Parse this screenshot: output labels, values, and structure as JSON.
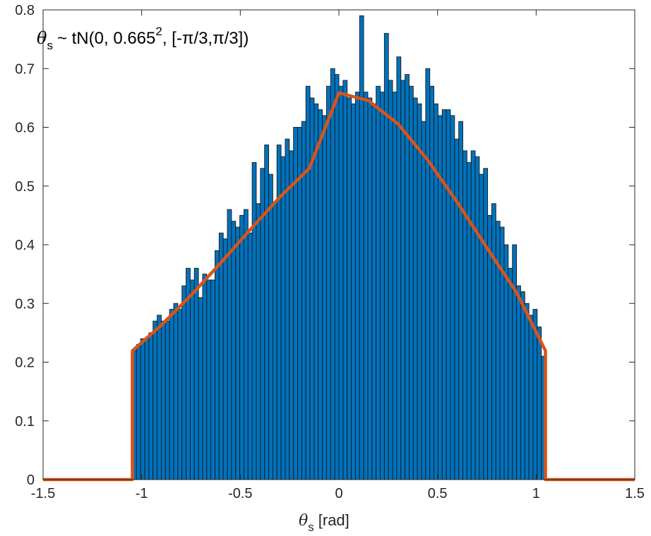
{
  "chart_data": {
    "type": "bar",
    "title": "",
    "annotation": {
      "symbol": "θ",
      "subscript": "s",
      "text": "~ tN(0, 0.665",
      "superscript": "2",
      "suffix": ", [-π/3,π/3])"
    },
    "xlabel": {
      "symbol": "θ",
      "subscript": "s",
      "text": "[rad]"
    },
    "ylabel": "",
    "xlim": [
      -1.5,
      1.5
    ],
    "ylim": [
      0,
      0.8
    ],
    "xticks": [
      -1.5,
      -1,
      -0.5,
      0,
      0.5,
      1,
      1.5
    ],
    "xtick_labels": [
      "-1.5",
      "-1",
      "-0.5",
      "0",
      "0.5",
      "1",
      "1.5"
    ],
    "yticks": [
      0,
      0.1,
      0.2,
      0.3,
      0.4,
      0.5,
      0.6,
      0.7,
      0.8
    ],
    "ytick_labels": [
      "0",
      "0.1",
      "0.2",
      "0.3",
      "0.4",
      "0.5",
      "0.6",
      "0.7",
      "0.8"
    ],
    "bin_range": [
      -1.0472,
      1.0472
    ],
    "bin_count": 100,
    "bar_values": [
      0.22,
      0.23,
      0.24,
      0.24,
      0.25,
      0.27,
      0.28,
      0.27,
      0.27,
      0.29,
      0.3,
      0.29,
      0.33,
      0.36,
      0.34,
      0.36,
      0.31,
      0.35,
      0.34,
      0.34,
      0.39,
      0.42,
      0.41,
      0.46,
      0.44,
      0.43,
      0.45,
      0.46,
      0.42,
      0.54,
      0.47,
      0.53,
      0.57,
      0.52,
      0.47,
      0.57,
      0.55,
      0.58,
      0.56,
      0.6,
      0.6,
      0.61,
      0.67,
      0.65,
      0.64,
      0.63,
      0.62,
      0.67,
      0.7,
      0.69,
      0.67,
      0.68,
      0.65,
      0.64,
      0.66,
      0.79,
      0.66,
      0.65,
      0.64,
      0.67,
      0.66,
      0.76,
      0.68,
      0.66,
      0.72,
      0.68,
      0.69,
      0.67,
      0.65,
      0.64,
      0.61,
      0.7,
      0.67,
      0.64,
      0.62,
      0.63,
      0.63,
      0.62,
      0.58,
      0.61,
      0.56,
      0.54,
      0.56,
      0.55,
      0.52,
      0.53,
      0.45,
      0.47,
      0.44,
      0.43,
      0.4,
      0.36,
      0.4,
      0.33,
      0.32,
      0.3,
      0.28,
      0.29,
      0.26,
      0.21
    ],
    "series": [
      {
        "type": "line",
        "x": [
          -1.5,
          -1.0472,
          -1.0472,
          -0.9,
          -0.75,
          -0.6,
          -0.45,
          -0.3,
          -0.15,
          0,
          0.15,
          0.3,
          0.45,
          0.6,
          0.75,
          0.9,
          1.0472,
          1.0472,
          1.5
        ],
        "y": [
          0,
          0,
          0.2194,
          0.2632,
          0.3138,
          0.3687,
          0.4256,
          0.4809,
          0.5302,
          0.6587,
          0.6454,
          0.6056,
          0.5443,
          0.4723,
          0.3949,
          0.3191,
          0.2194,
          0,
          0
        ]
      }
    ],
    "grid": false,
    "legend": "none",
    "colors": {
      "bar_fill": "#0072BD",
      "bar_edge": "#1a1a1a",
      "line": "#D95319",
      "axes": "#262626"
    }
  }
}
